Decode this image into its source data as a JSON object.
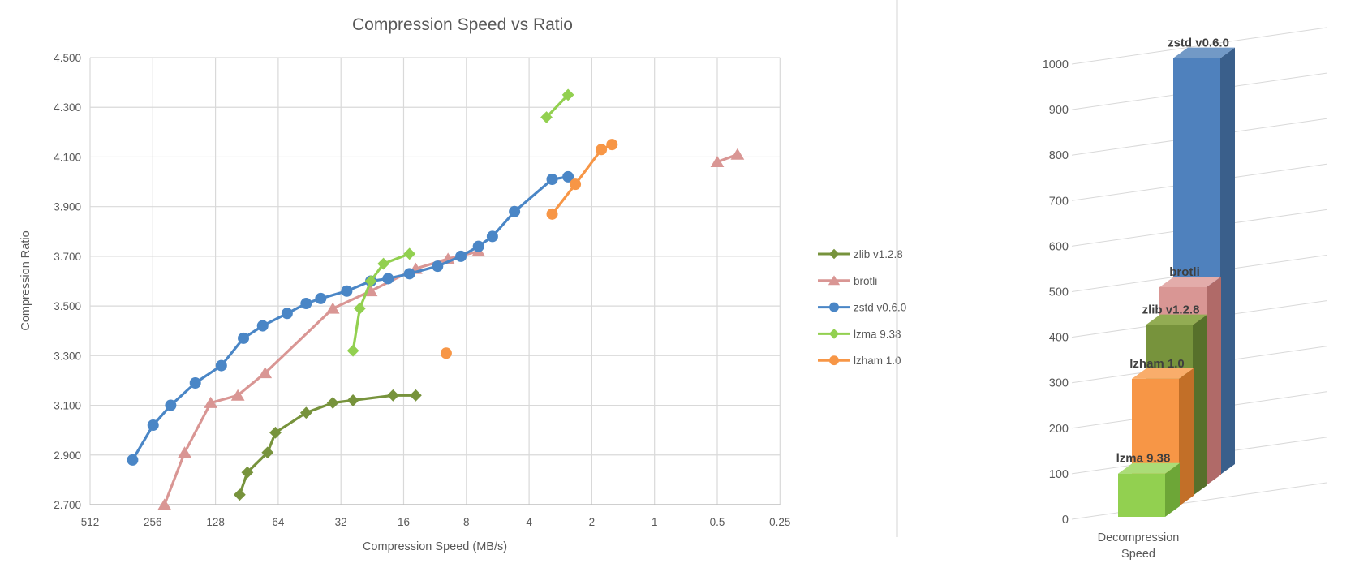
{
  "left_chart": {
    "title": "Compression Speed vs Ratio",
    "x_axis": {
      "title": "Compression Speed (MB/s)",
      "tick_labels": [
        "512",
        "256",
        "128",
        "64",
        "32",
        "16",
        "8",
        "4",
        "2",
        "1",
        "0.5",
        "0.25"
      ]
    },
    "y_axis": {
      "title": "Compression Ratio",
      "tick_labels": [
        "2.700",
        "2.900",
        "3.100",
        "3.300",
        "3.500",
        "3.700",
        "3.900",
        "4.100",
        "4.300",
        "4.500"
      ]
    },
    "legend": [
      "zlib v1.2.8",
      "brotli",
      "zstd v0.6.0",
      "lzma 9.38",
      "lzham 1.0"
    ]
  },
  "right_chart": {
    "category_label_line1": "Decompression",
    "category_label_line2": "Speed",
    "y_tick_labels": [
      "0",
      "100",
      "200",
      "300",
      "400",
      "500",
      "600",
      "700",
      "800",
      "900",
      "1000"
    ],
    "bar_labels": [
      "lzma 9.38",
      "lzham 1.0",
      "zlib v1.2.8",
      "brotli",
      "zstd v0.6.0"
    ]
  },
  "colors": {
    "grid": "#D9D9D9",
    "axis_line": "#BFBFBF",
    "text": "#595959",
    "bar_label_text": "#3F3F3F",
    "divider": "#D6D6D6",
    "zlib": "#77933C",
    "brotli": "#D99694",
    "zstd": "#4A86C6",
    "lzma": "#92D050",
    "lzham": "#F79646"
  },
  "chart_data": [
    {
      "type": "line",
      "title": "Compression Speed vs Ratio",
      "xlabel": "Compression Speed (MB/s)",
      "ylabel": "Compression Ratio",
      "x_scale": "log2-reversed",
      "xlim": [
        512,
        0.25
      ],
      "ylim": [
        2.7,
        4.5
      ],
      "x_ticks": [
        512,
        256,
        128,
        64,
        32,
        16,
        8,
        4,
        2,
        1,
        0.5,
        0.25
      ],
      "y_ticks": [
        2.7,
        2.9,
        3.1,
        3.3,
        3.5,
        3.7,
        3.9,
        4.1,
        4.3,
        4.5
      ],
      "grid": true,
      "legend_position": "right",
      "series": [
        {
          "name": "zlib v1.2.8",
          "color": "#77933C",
          "marker": "diamond",
          "segments": [
            [
              [
                98,
                2.74
              ],
              [
                90,
                2.83
              ],
              [
                72,
                2.91
              ],
              [
                66,
                2.99
              ],
              [
                47,
                3.07
              ],
              [
                35,
                3.11
              ],
              [
                28,
                3.12
              ],
              [
                18,
                3.14
              ],
              [
                14,
                3.14
              ]
            ]
          ]
        },
        {
          "name": "brotli",
          "color": "#D99694",
          "marker": "triangle",
          "segments": [
            [
              [
                225,
                2.7
              ],
              [
                180,
                2.91
              ],
              [
                135,
                3.11
              ],
              [
                100,
                3.14
              ],
              [
                74,
                3.23
              ],
              [
                35,
                3.49
              ],
              [
                23,
                3.56
              ],
              [
                14,
                3.65
              ],
              [
                9.8,
                3.69
              ],
              [
                7,
                3.72
              ]
            ],
            [
              [
                0.5,
                4.08
              ],
              [
                0.4,
                4.11
              ]
            ]
          ]
        },
        {
          "name": "zstd v0.6.0",
          "color": "#4A86C6",
          "marker": "circle",
          "segments": [
            [
              [
                320,
                2.88
              ],
              [
                255,
                3.02
              ],
              [
                210,
                3.1
              ],
              [
                160,
                3.19
              ],
              [
                120,
                3.26
              ],
              [
                94,
                3.37
              ],
              [
                76,
                3.42
              ],
              [
                58,
                3.47
              ],
              [
                47,
                3.51
              ],
              [
                40,
                3.53
              ],
              [
                30,
                3.56
              ],
              [
                23,
                3.6
              ],
              [
                19,
                3.61
              ],
              [
                15,
                3.63
              ],
              [
                11,
                3.66
              ],
              [
                8.5,
                3.7
              ],
              [
                7,
                3.74
              ],
              [
                6,
                3.78
              ],
              [
                4.7,
                3.88
              ],
              [
                3.1,
                4.01
              ],
              [
                2.6,
                4.02
              ]
            ]
          ]
        },
        {
          "name": "lzma 9.38",
          "color": "#92D050",
          "marker": "diamond",
          "segments": [
            [
              [
                28,
                3.32
              ],
              [
                26,
                3.49
              ],
              [
                23,
                3.6
              ],
              [
                20,
                3.67
              ],
              [
                15,
                3.71
              ]
            ],
            [
              [
                3.3,
                4.26
              ],
              [
                2.6,
                4.35
              ]
            ]
          ]
        },
        {
          "name": "lzham 1.0",
          "color": "#F79646",
          "marker": "circle",
          "segments": [
            [
              [
                10,
                3.31
              ]
            ],
            [
              [
                3.1,
                3.87
              ],
              [
                2.4,
                3.99
              ],
              [
                1.8,
                4.13
              ],
              [
                1.6,
                4.15
              ]
            ]
          ]
        }
      ]
    },
    {
      "type": "bar",
      "title": "",
      "xlabel": "Decompression Speed",
      "ylabel": "",
      "ylim": [
        0,
        1000
      ],
      "y_ticks": [
        0,
        100,
        200,
        300,
        400,
        500,
        600,
        700,
        800,
        900,
        1000
      ],
      "categories": [
        "lzma 9.38",
        "lzham 1.0",
        "zlib v1.2.8",
        "brotli",
        "zstd v0.6.0"
      ],
      "values": [
        95,
        280,
        375,
        435,
        915
      ],
      "bar_colors": [
        {
          "front": "#92D050",
          "side": "#6DA637",
          "top": "#ABDC77"
        },
        {
          "front": "#F79646",
          "side": "#C26F28",
          "top": "#F9AD6B"
        },
        {
          "front": "#77933C",
          "side": "#57702B",
          "top": "#92AC53"
        },
        {
          "front": "#D99694",
          "side": "#B06A68",
          "top": "#E3ACAA"
        },
        {
          "front": "#4F81BD",
          "side": "#3A5F8B",
          "top": "#7299C6"
        }
      ]
    }
  ]
}
